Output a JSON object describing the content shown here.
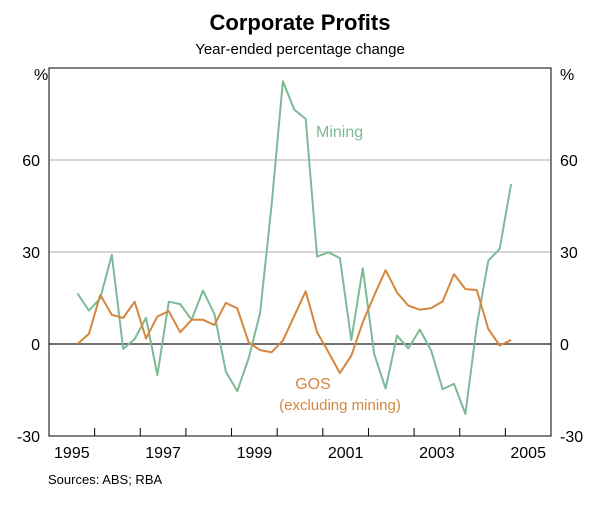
{
  "chart_data": {
    "type": "line",
    "title": "Corporate Profits",
    "subtitle": "Year-ended percentage change",
    "ylabel_left": "%",
    "ylabel_right": "%",
    "ylim": [
      -30,
      90
    ],
    "yticks": [
      -30,
      0,
      30,
      60
    ],
    "xlim": [
      1995,
      2006
    ],
    "xtick_labels": [
      "1995",
      "1997",
      "1999",
      "2001",
      "2003",
      "2005"
    ],
    "grid": true,
    "start_quarter": "1995-Q3",
    "end_quarter": "2005-Q1",
    "frequency": "quarterly",
    "series": [
      {
        "name": "Mining",
        "color": "#7dba96",
        "values": [
          16.5,
          10.9,
          14.9,
          29.1,
          -1.6,
          1.6,
          8.5,
          -10.1,
          13.8,
          13.0,
          7.9,
          17.4,
          9.8,
          -9.0,
          -15.4,
          -4.6,
          10.1,
          45,
          85.7,
          76.4,
          73.4,
          28.5,
          29.9,
          28.0,
          1.3,
          24.7,
          -3.3,
          -14.5,
          2.7,
          -1.4,
          4.7,
          -2.2,
          -14.7,
          -13.0,
          -22.8,
          6.0,
          27.2,
          31.0,
          52.2
        ]
      },
      {
        "name": "GOS (excluding mining)",
        "color": "#d4873e",
        "values": [
          0,
          3.3,
          16,
          9.5,
          8.5,
          13.8,
          1.8,
          9,
          10.7,
          3.8,
          7.9,
          7.9,
          6.2,
          13.4,
          11.6,
          0.5,
          -2,
          -2.7,
          1.1,
          9.2,
          17.2,
          3.8,
          -2.7,
          -9.5,
          -3.8,
          7.1,
          15.8,
          24.1,
          16.8,
          12.5,
          11.2,
          11.7,
          13.9,
          22.8,
          17.9,
          17.6,
          4.9,
          -0.5,
          1.3
        ]
      }
    ],
    "annotations": {
      "mining": "Mining",
      "gos_line1": "GOS",
      "gos_line2": "(excluding mining)"
    },
    "source": "Sources: ABS; RBA"
  }
}
